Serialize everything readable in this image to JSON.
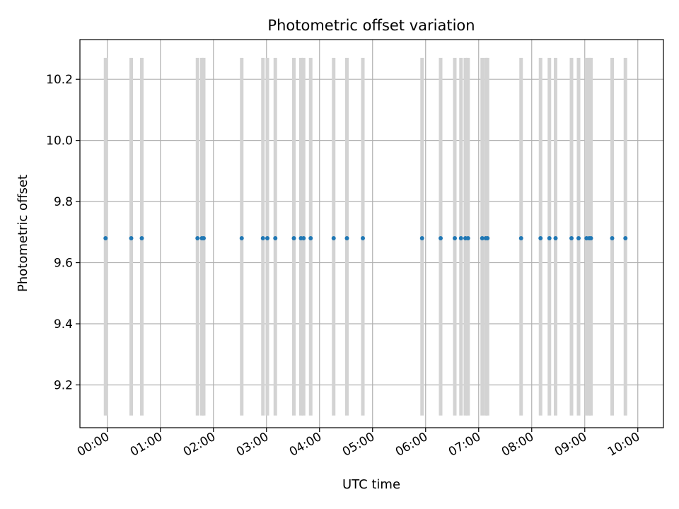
{
  "chart_data": {
    "type": "scatter",
    "title": "Photometric offset variation",
    "xlabel": "UTC time",
    "ylabel": "Photometric offset",
    "xlim": [
      "23:29",
      "10:29"
    ],
    "ylim": [
      9.06,
      10.33
    ],
    "x_ticks": [
      "00:00",
      "01:00",
      "02:00",
      "03:00",
      "04:00",
      "05:00",
      "06:00",
      "07:00",
      "08:00",
      "09:00",
      "10:00"
    ],
    "y_ticks": [
      "9.2",
      "9.4",
      "9.6",
      "9.8",
      "10.0",
      "10.2"
    ],
    "grid": true,
    "marker_color": "#1f77b4",
    "errorbar_color": "#d3d3d3",
    "errorbar_low": 9.1,
    "errorbar_high": 10.27,
    "x": [
      "23:58",
      "00:27",
      "00:39",
      "01:42",
      "01:47",
      "01:49",
      "02:32",
      "02:56",
      "03:01",
      "03:10",
      "03:31",
      "03:39",
      "03:42",
      "03:50",
      "04:16",
      "04:31",
      "04:49",
      "05:56",
      "06:17",
      "06:33",
      "06:40",
      "06:45",
      "06:48",
      "07:04",
      "07:08",
      "07:10",
      "07:48",
      "08:10",
      "08:20",
      "08:27",
      "08:45",
      "08:53",
      "09:02",
      "09:05",
      "09:07",
      "09:31",
      "09:46"
    ],
    "y": [
      9.68,
      9.68,
      9.68,
      9.68,
      9.68,
      9.68,
      9.68,
      9.68,
      9.68,
      9.68,
      9.68,
      9.68,
      9.68,
      9.68,
      9.68,
      9.68,
      9.68,
      9.68,
      9.68,
      9.68,
      9.68,
      9.68,
      9.68,
      9.68,
      9.68,
      9.68,
      9.68,
      9.68,
      9.68,
      9.68,
      9.68,
      9.68,
      9.68,
      9.68,
      9.68,
      9.68,
      9.68
    ]
  }
}
